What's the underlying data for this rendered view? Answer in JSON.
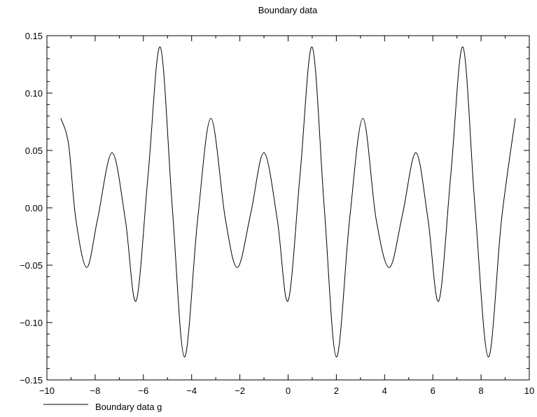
{
  "chart_data": {
    "type": "line",
    "title": "Boundary data",
    "xlabel": "",
    "ylabel": "",
    "xlim": [
      -10,
      10
    ],
    "ylim": [
      -0.15,
      0.15
    ],
    "x_ticks": [
      -10,
      -8,
      -6,
      -4,
      -2,
      0,
      2,
      4,
      6,
      8,
      10
    ],
    "x_tick_labels": [
      "−10",
      "−8",
      "−6",
      "−4",
      "−2",
      "0",
      "2",
      "4",
      "6",
      "8",
      "10"
    ],
    "y_ticks": [
      -0.15,
      -0.1,
      -0.05,
      0.0,
      0.05,
      0.1,
      0.15
    ],
    "y_tick_labels": [
      "−0.15",
      "−0.10",
      "−0.05",
      "0.00",
      "0.05",
      "0.10",
      "0.15"
    ],
    "grid": false,
    "legend": {
      "placement": "bottom-left"
    },
    "series": [
      {
        "name": "Boundary data g",
        "color": "#000000",
        "points": [
          [
            -9.42,
            0.078
          ],
          [
            -9.1,
            0.055
          ],
          [
            -8.8,
            -0.01
          ],
          [
            -8.35,
            -0.052
          ],
          [
            -7.9,
            -0.01
          ],
          [
            -7.3,
            0.048
          ],
          [
            -6.75,
            -0.01
          ],
          [
            -6.3,
            -0.081
          ],
          [
            -5.8,
            0.03
          ],
          [
            -5.3,
            0.14
          ],
          [
            -4.8,
            0.0
          ],
          [
            -4.3,
            -0.13
          ],
          [
            -3.75,
            -0.01
          ],
          [
            -3.2,
            0.078
          ],
          [
            -2.6,
            -0.01
          ],
          [
            -2.1,
            -0.052
          ],
          [
            -1.55,
            -0.005
          ],
          [
            -1.0,
            0.048
          ],
          [
            -0.45,
            -0.01
          ],
          [
            0.0,
            -0.081
          ],
          [
            0.5,
            0.03
          ],
          [
            1.0,
            0.14
          ],
          [
            1.5,
            0.0
          ],
          [
            2.0,
            -0.13
          ],
          [
            2.55,
            -0.01
          ],
          [
            3.1,
            0.078
          ],
          [
            3.65,
            -0.01
          ],
          [
            4.2,
            -0.052
          ],
          [
            4.75,
            -0.005
          ],
          [
            5.3,
            0.048
          ],
          [
            5.8,
            -0.01
          ],
          [
            6.25,
            -0.081
          ],
          [
            6.75,
            0.03
          ],
          [
            7.25,
            0.14
          ],
          [
            7.75,
            0.0
          ],
          [
            8.3,
            -0.13
          ],
          [
            8.85,
            -0.01
          ],
          [
            9.42,
            0.078
          ]
        ]
      }
    ]
  }
}
